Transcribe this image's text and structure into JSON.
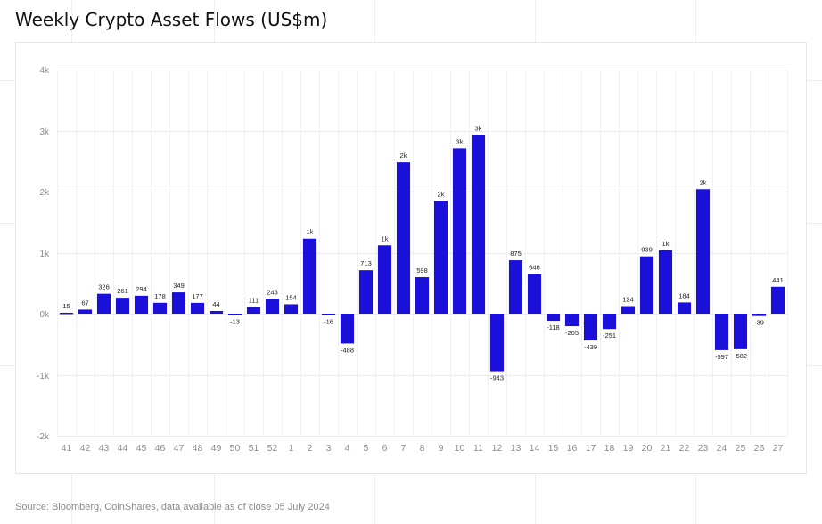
{
  "chart_data": {
    "type": "bar",
    "title": "Weekly Crypto Asset Flows (US$m)",
    "source": "Source: Bloomberg, CoinShares, data available as of close 05 July 2024",
    "bar_color": "#1a10d9",
    "ylim": [
      -2000,
      4000
    ],
    "y_ticks": [
      4000,
      3000,
      2000,
      1000,
      0,
      -1000,
      -2000
    ],
    "y_tick_labels": [
      "4k",
      "3k",
      "2k",
      "1k",
      "0k",
      "-1k",
      "-2k"
    ],
    "grid": true,
    "categories": [
      "41",
      "42",
      "43",
      "44",
      "45",
      "46",
      "47",
      "48",
      "49",
      "50",
      "51",
      "52",
      "1",
      "2",
      "3",
      "4",
      "5",
      "6",
      "7",
      "8",
      "9",
      "10",
      "11",
      "12",
      "13",
      "14",
      "15",
      "16",
      "17",
      "18",
      "19",
      "20",
      "21",
      "22",
      "23",
      "24",
      "25",
      "26",
      "27"
    ],
    "values": [
      15,
      67,
      326,
      261,
      294,
      178,
      349,
      177,
      44,
      -13,
      111,
      243,
      154,
      1230,
      -16,
      -488,
      713,
      1120,
      2480,
      598,
      1850,
      2710,
      2930,
      -943,
      875,
      646,
      -118,
      -205,
      -439,
      -251,
      124,
      939,
      1040,
      184,
      2040,
      -597,
      -582,
      -39,
      441
    ],
    "data_labels": [
      "15",
      "67",
      "326",
      "261",
      "294",
      "178",
      "349",
      "177",
      "44",
      "-13",
      "111",
      "243",
      "154",
      "1k",
      "-16",
      "-488",
      "713",
      "1k",
      "2k",
      "598",
      "2k",
      "3k",
      "3k",
      "-943",
      "875",
      "646",
      "-118",
      "-205",
      "-439",
      "-251",
      "124",
      "939",
      "1k",
      "184",
      "2k",
      "-597",
      "-582",
      "-39",
      "441"
    ]
  }
}
